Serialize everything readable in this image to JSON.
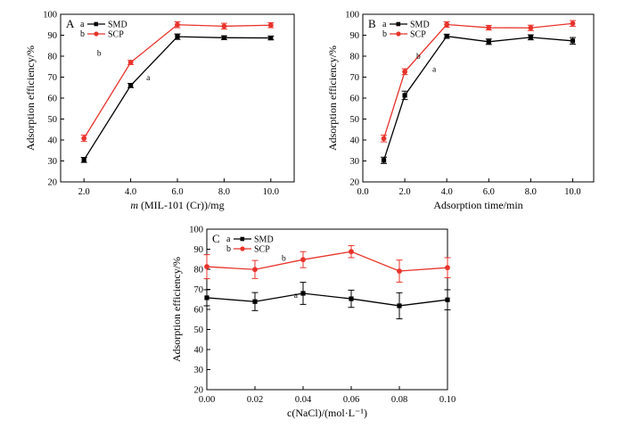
{
  "chart_data": [
    {
      "panel_label": "A",
      "type": "line",
      "xlabel_italic": "m",
      "xlabel_rest": " (MIL-101 (Cr))/mg",
      "ylabel": "Adsorption efficiency/%",
      "xlim": [
        1.0,
        11.0
      ],
      "ylim": [
        20,
        100
      ],
      "x_ticks": [
        "2.0",
        "4.0",
        "6.0",
        "8.0",
        "10.0"
      ],
      "x_tick_values": [
        2,
        4,
        6,
        8,
        10
      ],
      "y_ticks": [
        "20",
        "30",
        "40",
        "50",
        "60",
        "70",
        "80",
        "90",
        "100"
      ],
      "y_tick_values": [
        20,
        30,
        40,
        50,
        60,
        70,
        80,
        90,
        100
      ],
      "legend_position": "top-left",
      "series": [
        {
          "name": "SMD",
          "legend_prefix": "a",
          "color": "#000000",
          "x": [
            2,
            4,
            6,
            8,
            10
          ],
          "values": [
            30.5,
            66,
            89.3,
            88.8,
            88.7
          ],
          "errors": [
            1.2,
            1.0,
            1.3,
            0.9,
            0.9
          ]
        },
        {
          "name": "SCP",
          "legend_prefix": "b",
          "color": "#e8332b",
          "x": [
            2,
            4,
            6,
            8,
            10
          ],
          "values": [
            40.8,
            77,
            95,
            94.3,
            94.8
          ],
          "errors": [
            1.5,
            1.0,
            1.4,
            1.4,
            1.2
          ]
        }
      ],
      "annotations": [
        {
          "text": "b",
          "x": 2.65,
          "y": 80.3
        },
        {
          "text": "a",
          "x": 4.75,
          "y": 68.5
        }
      ]
    },
    {
      "panel_label": "B",
      "type": "line",
      "xlabel": "Adsorption time/min",
      "ylabel": "Adsorption efficiency/%",
      "xlim": [
        0.0,
        11.0
      ],
      "ylim": [
        20,
        100
      ],
      "x_ticks": [
        "0.0",
        "2.0",
        "4.0",
        "6.0",
        "8.0",
        "10.0"
      ],
      "x_tick_values": [
        0,
        2,
        4,
        6,
        8,
        10
      ],
      "y_ticks": [
        "20",
        "30",
        "40",
        "50",
        "60",
        "70",
        "80",
        "90",
        "100"
      ],
      "y_tick_values": [
        20,
        30,
        40,
        50,
        60,
        70,
        80,
        90,
        100
      ],
      "legend_position": "top-left",
      "series": [
        {
          "name": "SMD",
          "legend_prefix": "a",
          "color": "#000000",
          "x": [
            1,
            2,
            4,
            6,
            8,
            10
          ],
          "values": [
            30.3,
            61.3,
            89.5,
            86.9,
            89,
            87.3
          ],
          "errors": [
            1.5,
            2.0,
            1.0,
            1.3,
            1.2,
            1.6
          ]
        },
        {
          "name": "SCP",
          "legend_prefix": "b",
          "color": "#e8332b",
          "x": [
            1,
            2,
            4,
            6,
            8,
            10
          ],
          "values": [
            40.7,
            72.6,
            95.1,
            93.6,
            93.5,
            95.6
          ],
          "errors": [
            1.6,
            1.4,
            1.3,
            1.1,
            1.3,
            1.4
          ]
        }
      ],
      "annotations": [
        {
          "text": "b",
          "x": 2.65,
          "y": 78.7
        },
        {
          "text": "a",
          "x": 3.4,
          "y": 72.6
        }
      ]
    },
    {
      "panel_label": "C",
      "type": "line",
      "xlabel": "c(NaCl)/(mol·L⁻¹)",
      "ylabel": "Adsorption efficiency/%",
      "xlim": [
        0.0,
        0.1
      ],
      "ylim": [
        20,
        100
      ],
      "x_ticks": [
        "0.00",
        "0.02",
        "0.04",
        "0.06",
        "0.08",
        "0.10"
      ],
      "x_tick_values": [
        0,
        0.02,
        0.04,
        0.06,
        0.08,
        0.1
      ],
      "y_ticks": [
        "20",
        "30",
        "40",
        "50",
        "60",
        "70",
        "80",
        "90",
        "100"
      ],
      "y_tick_values": [
        20,
        30,
        40,
        50,
        60,
        70,
        80,
        90,
        100
      ],
      "legend_position": "top-left",
      "series": [
        {
          "name": "SMD",
          "legend_prefix": "a",
          "color": "#000000",
          "x": [
            0,
            0.02,
            0.04,
            0.06,
            0.08,
            0.1
          ],
          "values": [
            65.8,
            63.9,
            68,
            65.3,
            61.8,
            64.8
          ],
          "errors": [
            4,
            4.5,
            5.5,
            4.3,
            6.5,
            5
          ]
        },
        {
          "name": "SCP",
          "legend_prefix": "b",
          "color": "#e8332b",
          "x": [
            0,
            0.02,
            0.04,
            0.06,
            0.08,
            0.1
          ],
          "values": [
            81.3,
            79.9,
            84.8,
            88.8,
            79.1,
            80.8
          ],
          "errors": [
            6,
            4.5,
            4,
            3,
            5.5,
            5
          ]
        }
      ],
      "annotations": [
        {
          "text": "b",
          "x": 0.032,
          "y": 84.2
        },
        {
          "text": "a",
          "x": 0.037,
          "y": 65.7
        }
      ]
    }
  ]
}
